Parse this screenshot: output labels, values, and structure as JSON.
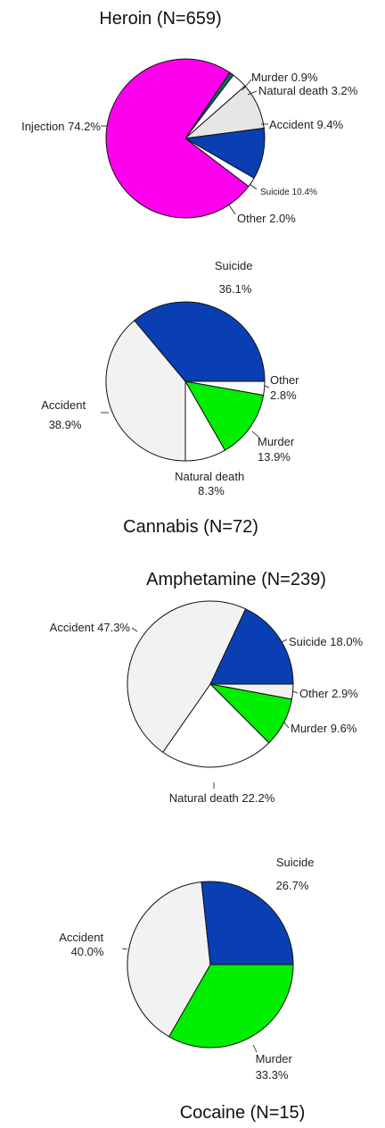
{
  "chart_data": [
    {
      "type": "pie",
      "title": "Heroin (N=659)",
      "slices": [
        {
          "name": "Murder",
          "label": "Murder  0.9%",
          "value": 0.9,
          "color": "#0a6e5a"
        },
        {
          "name": "Natural death",
          "label": "Natural death  3.2%",
          "value": 3.2,
          "color": "#ffffff"
        },
        {
          "name": "Accident",
          "label": "Accident  9.4%",
          "value": 9.4,
          "color": "#e6e6e6"
        },
        {
          "name": "Suicide",
          "label": "Suicide 10.4%",
          "value": 10.4,
          "color": "#0a3fb4"
        },
        {
          "name": "Other",
          "label": "Other  2.0%",
          "value": 2.0,
          "color": "#ffffff"
        },
        {
          "name": "Injection",
          "label": "Injection  74.2%",
          "value": 74.2,
          "color": "#ff00ee"
        }
      ]
    },
    {
      "type": "pie",
      "title": "Cannabis (N=72)",
      "slices": [
        {
          "name": "Other",
          "label": [
            "Other",
            "2.8%"
          ],
          "value": 2.8,
          "color": "#ffffff"
        },
        {
          "name": "Murder",
          "label": [
            "Murder",
            "13.9%"
          ],
          "value": 13.9,
          "color": "#00ee00"
        },
        {
          "name": "Natural death",
          "label": [
            "Natural death",
            "8.3%"
          ],
          "value": 8.3,
          "color": "#ffffff"
        },
        {
          "name": "Accident",
          "label": [
            "Accident",
            "38.9%"
          ],
          "value": 38.9,
          "color": "#f2f2f2"
        },
        {
          "name": "Suicide",
          "label": [
            "Suicide",
            "36.1%"
          ],
          "value": 36.1,
          "color": "#0a3fb4"
        }
      ]
    },
    {
      "type": "pie",
      "title": "Amphetamine (N=239)",
      "slices": [
        {
          "name": "Other",
          "label": "Other  2.9%",
          "value": 2.9,
          "color": "#f2f2f2"
        },
        {
          "name": "Murder",
          "label": "Murder  9.6%",
          "value": 9.6,
          "color": "#00ee00"
        },
        {
          "name": "Natural death",
          "label": "Natural death  22.2%",
          "value": 22.2,
          "color": "#ffffff"
        },
        {
          "name": "Accident",
          "label": "Accident  47.3%",
          "value": 47.3,
          "color": "#f2f2f2"
        },
        {
          "name": "Suicide",
          "label": "Suicide  18.0%",
          "value": 18.0,
          "color": "#0a3fb4"
        }
      ]
    },
    {
      "type": "pie",
      "title": "Cocaine (N=15)",
      "slices": [
        {
          "name": "Murder",
          "label": [
            "Murder",
            "33.3%"
          ],
          "value": 33.3,
          "color": "#00ee00"
        },
        {
          "name": "Accident",
          "label": [
            "Accident",
            "40.0%"
          ],
          "value": 40.0,
          "color": "#f2f2f2"
        },
        {
          "name": "Suicide",
          "label": [
            "Suicide",
            "26.7%"
          ],
          "value": 26.7,
          "color": "#0a3fb4"
        }
      ]
    }
  ]
}
